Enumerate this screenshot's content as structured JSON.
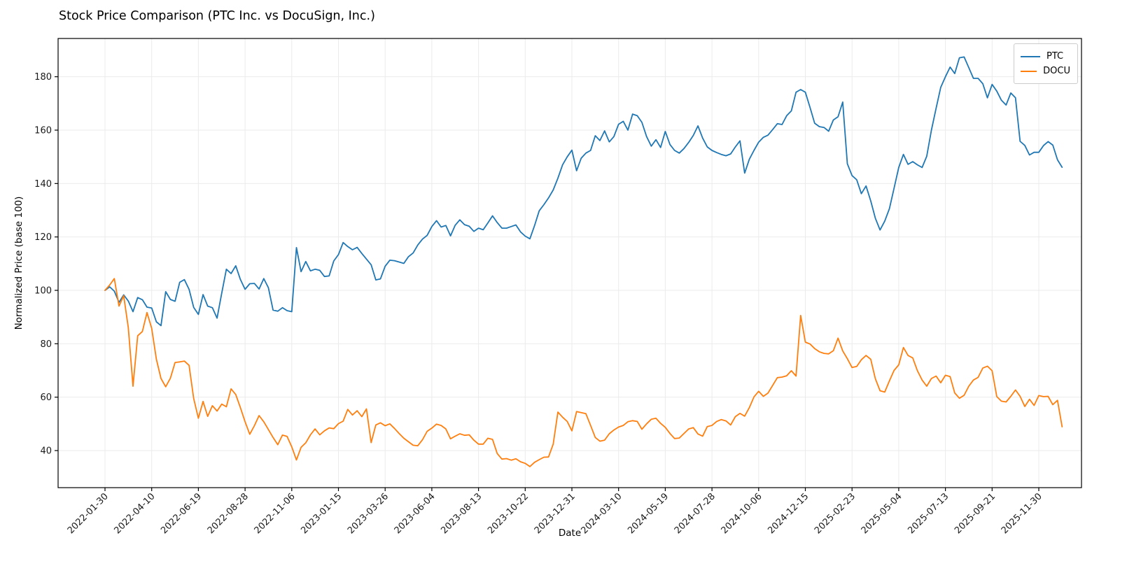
{
  "figure": {
    "title": "Stock Price Comparison (PTC Inc. vs DocuSign, Inc.)",
    "xlabel": "Date",
    "ylabel": "Normalized Price (base 100)"
  },
  "legend": {
    "entries": [
      {
        "label": "PTC",
        "color": "#1f77b4"
      },
      {
        "label": "DOCU",
        "color": "#ff7f0e"
      }
    ]
  },
  "colors": {
    "ptc": "#1f77b4",
    "docu": "#ff7f0e",
    "grid": "#ebebeb",
    "spine": "#000000",
    "tick_text": "#1a1a1a",
    "background": "#ffffff"
  },
  "chart_data": {
    "type": "line",
    "title": "Stock Price Comparison (PTC Inc. vs DocuSign, Inc.)",
    "xlabel": "Date",
    "ylabel": "Normalized Price (base 100)",
    "grid": true,
    "legend_position": "upper right",
    "x_start_date": "2022-01-30",
    "x_interval": "weekly",
    "x_tick_weeks": [
      0,
      10,
      20,
      30,
      40,
      50,
      60,
      70,
      80,
      90,
      100,
      110,
      120,
      130,
      140,
      150,
      160,
      170,
      180,
      190,
      200
    ],
    "x_tick_labels": [
      "2022-01-30",
      "2022-04-10",
      "2022-06-19",
      "2022-08-28",
      "2022-11-06",
      "2023-01-15",
      "2023-03-26",
      "2023-06-04",
      "2023-08-13",
      "2023-10-22",
      "2023-12-31",
      "2024-03-10",
      "2024-05-19",
      "2024-07-28",
      "2024-10-06",
      "2024-12-15",
      "2025-02-23",
      "2025-05-04",
      "2025-07-13",
      "2025-09-21",
      "2025-11-30"
    ],
    "y_ticks": [
      40,
      60,
      80,
      100,
      120,
      140,
      160,
      180
    ],
    "ylim": [
      26.2,
      194.3
    ],
    "series": [
      {
        "name": "PTC",
        "color": "#1f77b4",
        "values": [
          100,
          101.3,
          99.7,
          95.5,
          98.3,
          96,
          92,
          97.3,
          96.5,
          93.7,
          93.4,
          88.2,
          86.8,
          99.5,
          96.6,
          95.9,
          103,
          104,
          100.4,
          93.6,
          91,
          98.4,
          94.1,
          93.5,
          89.6,
          99,
          107.9,
          106.3,
          109.2,
          104.1,
          100.4,
          102.5,
          102.6,
          100.5,
          104.4,
          101,
          92.6,
          92.2,
          93.5,
          92.4,
          92,
          116,
          107,
          110.8,
          107.3,
          107.9,
          107.5,
          105.2,
          105.4,
          111,
          113.4,
          117.9,
          116.4,
          115.2,
          116.1,
          113.8,
          111.7,
          109.6,
          103.9,
          104.3,
          109,
          111.3,
          111.1,
          110.6,
          110.1,
          112.6,
          114,
          117,
          119.2,
          120.6,
          123.9,
          126.1,
          123.7,
          124.3,
          120.4,
          124.4,
          126.4,
          124.6,
          124,
          122.1,
          123.3,
          122.7,
          125.2,
          127.9,
          125.4,
          123.3,
          123.3,
          123.9,
          124.5,
          121.9,
          120.3,
          119.3,
          124.2,
          129.8,
          132.1,
          134.6,
          137.6,
          142,
          147,
          150,
          152.5,
          144.8,
          149.5,
          151.4,
          152.4,
          157.9,
          156.1,
          159.7,
          155.6,
          157.6,
          162.2,
          163.3,
          160,
          166,
          165.4,
          162.9,
          157.6,
          154,
          156.4,
          153.5,
          159.5,
          154.6,
          152.4,
          151.4,
          153.1,
          155.4,
          158,
          161.6,
          157,
          153.7,
          152.4,
          151.6,
          150.9,
          150.4,
          151.1,
          153.7,
          156,
          143.9,
          149.1,
          152.4,
          155.5,
          157.3,
          158.1,
          160.2,
          162.4,
          162.1,
          165.4,
          167.2,
          174.2,
          175.2,
          174.2,
          168.5,
          162.6,
          161.3,
          161,
          159.6,
          163.8,
          165,
          170.5,
          147.4,
          143,
          141.4,
          136.2,
          139.1,
          133.5,
          127,
          122.6,
          125.9,
          130.6,
          138.2,
          146,
          150.9,
          147.2,
          148.2,
          147,
          146,
          150.2,
          160,
          168.2,
          176,
          180,
          183.6,
          181.2,
          187.1,
          187.4,
          183.4,
          179.4,
          179.4,
          177.4,
          172.1,
          177.1,
          174.6,
          171.2,
          169.4,
          173.9,
          172.1,
          155.8,
          154.3,
          150.7,
          151.7,
          151.7,
          154.2,
          155.7,
          154.4,
          148.9,
          146.1
        ]
      },
      {
        "name": "DOCU",
        "color": "#ff7f0e",
        "values": [
          100,
          102,
          104.4,
          94.1,
          98,
          86,
          64.1,
          83,
          84.6,
          91.7,
          85.8,
          74.2,
          67,
          63.9,
          67.1,
          73,
          73.2,
          73.5,
          71.9,
          59.5,
          52.1,
          58.4,
          52.8,
          56.8,
          54.8,
          57.4,
          56.4,
          63.1,
          61,
          56.1,
          50.8,
          46.1,
          49.3,
          53.1,
          50.8,
          47.9,
          44.9,
          42.2,
          45.8,
          45.3,
          41.4,
          36.5,
          41.2,
          42.9,
          45.9,
          48.1,
          45.9,
          47.4,
          48.5,
          48.2,
          50.1,
          51,
          55.4,
          53.3,
          54.9,
          52.7,
          55.6,
          43,
          49.6,
          50.4,
          49.3,
          50,
          48.3,
          46.4,
          44.6,
          43.3,
          42,
          41.8,
          44.1,
          47.2,
          48.4,
          49.9,
          49.4,
          48.1,
          44.4,
          45.4,
          46.3,
          45.7,
          45.9,
          43.9,
          42.4,
          42.4,
          44.6,
          44.2,
          38.9,
          36.8,
          37,
          36.4,
          36.9,
          35.8,
          35.2,
          34,
          35.6,
          36.6,
          37.5,
          37.6,
          42.4,
          54.4,
          52.5,
          50.9,
          47.4,
          54.6,
          54.2,
          53.8,
          49.4,
          44.9,
          43.5,
          43.9,
          46.3,
          47.7,
          48.8,
          49.4,
          50.8,
          51.2,
          50.9,
          48,
          50,
          51.7,
          52.1,
          50.2,
          48.7,
          46.4,
          44.5,
          44.7,
          46.4,
          48.1,
          48.6,
          46.2,
          45.4,
          49,
          49.4,
          50.9,
          51.6,
          51.1,
          49.6,
          52.7,
          53.9,
          52.9,
          56.1,
          60.1,
          62.2,
          60.3,
          61.5,
          64.4,
          67.3,
          67.5,
          68,
          69.9,
          67.9,
          90.6,
          80.6,
          79.9,
          78.2,
          77,
          76.4,
          76.2,
          77.4,
          82.1,
          77.3,
          74.4,
          71.1,
          71.5,
          74,
          75.6,
          74.2,
          66.9,
          62.4,
          61.9,
          66.1,
          70,
          72.1,
          78.6,
          75.6,
          74.7,
          69.9,
          66.4,
          64.1,
          67,
          67.9,
          65.4,
          68.2,
          67.7,
          61.6,
          59.6,
          60.7,
          64.1,
          66.4,
          67.4,
          70.9,
          71.6,
          69.9,
          60.2,
          58.5,
          58.2,
          60.3,
          62.7,
          60.3,
          56.5,
          59.2,
          56.9,
          60.6,
          60.2,
          60.3,
          57.2,
          58.8,
          48.9
        ]
      }
    ]
  }
}
